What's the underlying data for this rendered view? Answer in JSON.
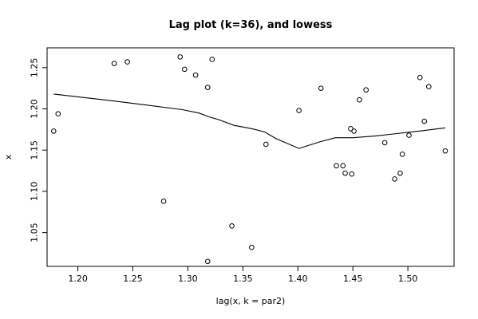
{
  "chart_data": {
    "type": "scatter",
    "title": "Lag plot (k=36), and lowess",
    "xlabel": "lag(x, k = par2)",
    "ylabel": "x",
    "xlim": [
      1.172,
      1.542
    ],
    "ylim": [
      1.009,
      1.274
    ],
    "x_ticks": [
      1.2,
      1.25,
      1.3,
      1.35,
      1.4,
      1.45,
      1.5
    ],
    "x_tick_labels": [
      "1.20",
      "1.25",
      "1.30",
      "1.35",
      "1.40",
      "1.45",
      "1.50"
    ],
    "y_ticks": [
      1.05,
      1.1,
      1.15,
      1.2,
      1.25
    ],
    "y_tick_labels": [
      "1.05",
      "1.10",
      "1.15",
      "1.20",
      "1.25"
    ],
    "grid": false,
    "series": [
      {
        "kind": "points",
        "marker": "open-circle",
        "x": [
          1.178,
          1.182,
          1.233,
          1.245,
          1.278,
          1.293,
          1.297,
          1.307,
          1.318,
          1.318,
          1.322,
          1.34,
          1.358,
          1.371,
          1.401,
          1.421,
          1.435,
          1.441,
          1.443,
          1.448,
          1.449,
          1.451,
          1.456,
          1.462,
          1.479,
          1.488,
          1.493,
          1.495,
          1.501,
          1.511,
          1.515,
          1.519,
          1.534
        ],
        "y": [
          1.173,
          1.194,
          1.255,
          1.257,
          1.088,
          1.263,
          1.248,
          1.241,
          1.226,
          1.015,
          1.26,
          1.058,
          1.032,
          1.157,
          1.198,
          1.225,
          1.131,
          1.131,
          1.122,
          1.176,
          1.121,
          1.173,
          1.211,
          1.223,
          1.159,
          1.115,
          1.122,
          1.145,
          1.168,
          1.238,
          1.185,
          1.227,
          1.149
        ]
      },
      {
        "kind": "line",
        "x": [
          1.178,
          1.23,
          1.26,
          1.295,
          1.31,
          1.32,
          1.328,
          1.342,
          1.358,
          1.37,
          1.38,
          1.401,
          1.42,
          1.434,
          1.45,
          1.47,
          1.49,
          1.51,
          1.534
        ],
        "y": [
          1.218,
          1.21,
          1.205,
          1.199,
          1.195,
          1.19,
          1.187,
          1.18,
          1.176,
          1.172,
          1.164,
          1.152,
          1.16,
          1.165,
          1.165,
          1.167,
          1.17,
          1.173,
          1.177
        ]
      }
    ]
  }
}
